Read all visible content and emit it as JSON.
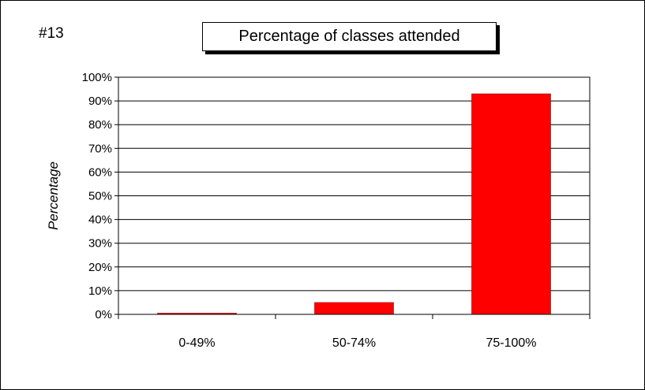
{
  "chart_label": "#13",
  "chart_data": {
    "type": "bar",
    "title": "Percentage of classes attended",
    "xlabel": "",
    "ylabel": "Percentage",
    "categories": [
      "0-49%",
      "50-74%",
      "75-100%"
    ],
    "values": [
      0.5,
      5,
      93
    ],
    "ylim": [
      0,
      100
    ],
    "y_ticks": [
      "0%",
      "10%",
      "20%",
      "30%",
      "40%",
      "50%",
      "60%",
      "70%",
      "80%",
      "90%",
      "100%"
    ],
    "grid": true,
    "legend": "none",
    "bar_color": "#ff0000",
    "bar_edge_color": "#8b0000"
  }
}
